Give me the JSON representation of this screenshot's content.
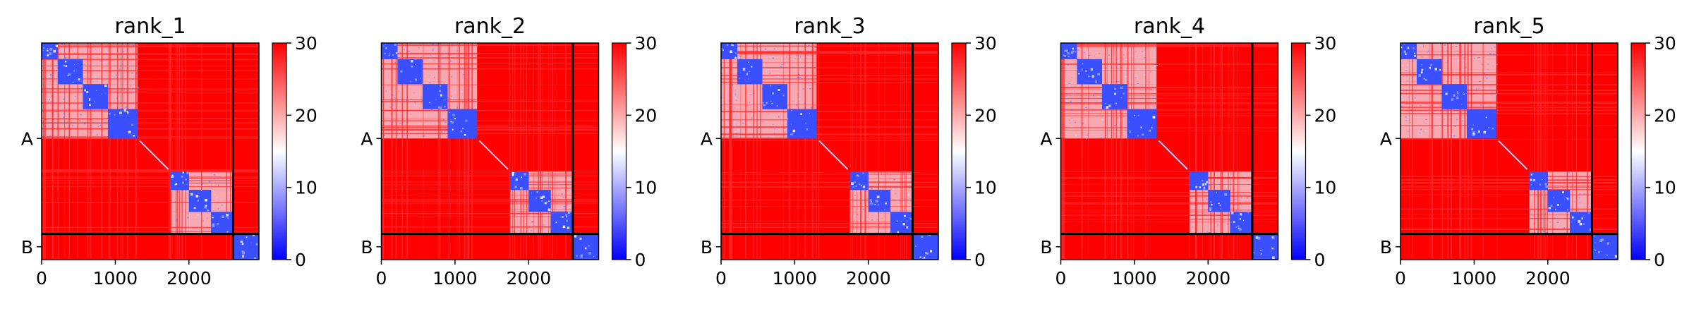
{
  "chart_data": [
    {
      "type": "heatmap",
      "title": "rank_1",
      "x_ticks": [
        "0",
        "1000",
        "2000"
      ],
      "x_tick_values": [
        0,
        1000,
        2000
      ],
      "y_ticks": [
        "A",
        "B"
      ],
      "chains": [
        {
          "name": "A",
          "start": 0,
          "end": 2600
        },
        {
          "name": "B",
          "start": 2600,
          "end": 2950
        }
      ],
      "x_range": [
        0,
        2950
      ],
      "colorbar": {
        "ticks": [
          "0",
          "10",
          "20",
          "30"
        ],
        "range": [
          0,
          30
        ],
        "colors": [
          "#0000ff",
          "#ffffff",
          "#ff0000"
        ]
      },
      "domain_blocks": [
        [
          0,
          220
        ],
        [
          220,
          560
        ],
        [
          560,
          900
        ],
        [
          900,
          1300
        ],
        [
          1750,
          2000
        ],
        [
          2000,
          2300
        ],
        [
          2300,
          2600
        ],
        [
          2600,
          2950
        ]
      ],
      "gap_band": [
        1330,
        1720
      ],
      "pattern_seed": 11
    },
    {
      "type": "heatmap",
      "title": "rank_2",
      "x_ticks": [
        "0",
        "1000",
        "2000"
      ],
      "x_tick_values": [
        0,
        1000,
        2000
      ],
      "y_ticks": [
        "A",
        "B"
      ],
      "chains": [
        {
          "name": "A",
          "start": 0,
          "end": 2600
        },
        {
          "name": "B",
          "start": 2600,
          "end": 2950
        }
      ],
      "x_range": [
        0,
        2950
      ],
      "colorbar": {
        "ticks": [
          "0",
          "10",
          "20",
          "30"
        ],
        "range": [
          0,
          30
        ],
        "colors": [
          "#0000ff",
          "#ffffff",
          "#ff0000"
        ]
      },
      "domain_blocks": [
        [
          0,
          220
        ],
        [
          220,
          560
        ],
        [
          560,
          900
        ],
        [
          900,
          1300
        ],
        [
          1750,
          2000
        ],
        [
          2000,
          2300
        ],
        [
          2300,
          2600
        ],
        [
          2600,
          2950
        ]
      ],
      "gap_band": [
        1330,
        1720
      ],
      "pattern_seed": 23
    },
    {
      "type": "heatmap",
      "title": "rank_3",
      "x_ticks": [
        "0",
        "1000",
        "2000"
      ],
      "x_tick_values": [
        0,
        1000,
        2000
      ],
      "y_ticks": [
        "A",
        "B"
      ],
      "chains": [
        {
          "name": "A",
          "start": 0,
          "end": 2600
        },
        {
          "name": "B",
          "start": 2600,
          "end": 2950
        }
      ],
      "x_range": [
        0,
        2950
      ],
      "colorbar": {
        "ticks": [
          "0",
          "10",
          "20",
          "30"
        ],
        "range": [
          0,
          30
        ],
        "colors": [
          "#0000ff",
          "#ffffff",
          "#ff0000"
        ]
      },
      "domain_blocks": [
        [
          0,
          220
        ],
        [
          220,
          560
        ],
        [
          560,
          900
        ],
        [
          900,
          1300
        ],
        [
          1750,
          2000
        ],
        [
          2000,
          2300
        ],
        [
          2300,
          2600
        ],
        [
          2600,
          2950
        ]
      ],
      "gap_band": [
        1330,
        1720
      ],
      "pattern_seed": 37
    },
    {
      "type": "heatmap",
      "title": "rank_4",
      "x_ticks": [
        "0",
        "1000",
        "2000"
      ],
      "x_tick_values": [
        0,
        1000,
        2000
      ],
      "y_ticks": [
        "A",
        "B"
      ],
      "chains": [
        {
          "name": "A",
          "start": 0,
          "end": 2600
        },
        {
          "name": "B",
          "start": 2600,
          "end": 2950
        }
      ],
      "x_range": [
        0,
        2950
      ],
      "colorbar": {
        "ticks": [
          "0",
          "10",
          "20",
          "30"
        ],
        "range": [
          0,
          30
        ],
        "colors": [
          "#0000ff",
          "#ffffff",
          "#ff0000"
        ]
      },
      "domain_blocks": [
        [
          0,
          220
        ],
        [
          220,
          560
        ],
        [
          560,
          900
        ],
        [
          900,
          1300
        ],
        [
          1750,
          2000
        ],
        [
          2000,
          2300
        ],
        [
          2300,
          2600
        ],
        [
          2600,
          2950
        ]
      ],
      "gap_band": [
        1330,
        1720
      ],
      "pattern_seed": 41
    },
    {
      "type": "heatmap",
      "title": "rank_5",
      "x_ticks": [
        "0",
        "1000",
        "2000"
      ],
      "x_tick_values": [
        0,
        1000,
        2000
      ],
      "y_ticks": [
        "A",
        "B"
      ],
      "chains": [
        {
          "name": "A",
          "start": 0,
          "end": 2600
        },
        {
          "name": "B",
          "start": 2600,
          "end": 2950
        }
      ],
      "x_range": [
        0,
        2950
      ],
      "colorbar": {
        "ticks": [
          "0",
          "10",
          "20",
          "30"
        ],
        "range": [
          0,
          30
        ],
        "colors": [
          "#0000ff",
          "#ffffff",
          "#ff0000"
        ]
      },
      "domain_blocks": [
        [
          0,
          220
        ],
        [
          220,
          560
        ],
        [
          560,
          900
        ],
        [
          900,
          1300
        ],
        [
          1750,
          2000
        ],
        [
          2000,
          2300
        ],
        [
          2300,
          2600
        ],
        [
          2600,
          2950
        ]
      ],
      "gap_band": [
        1330,
        1720
      ],
      "pattern_seed": 53
    }
  ]
}
